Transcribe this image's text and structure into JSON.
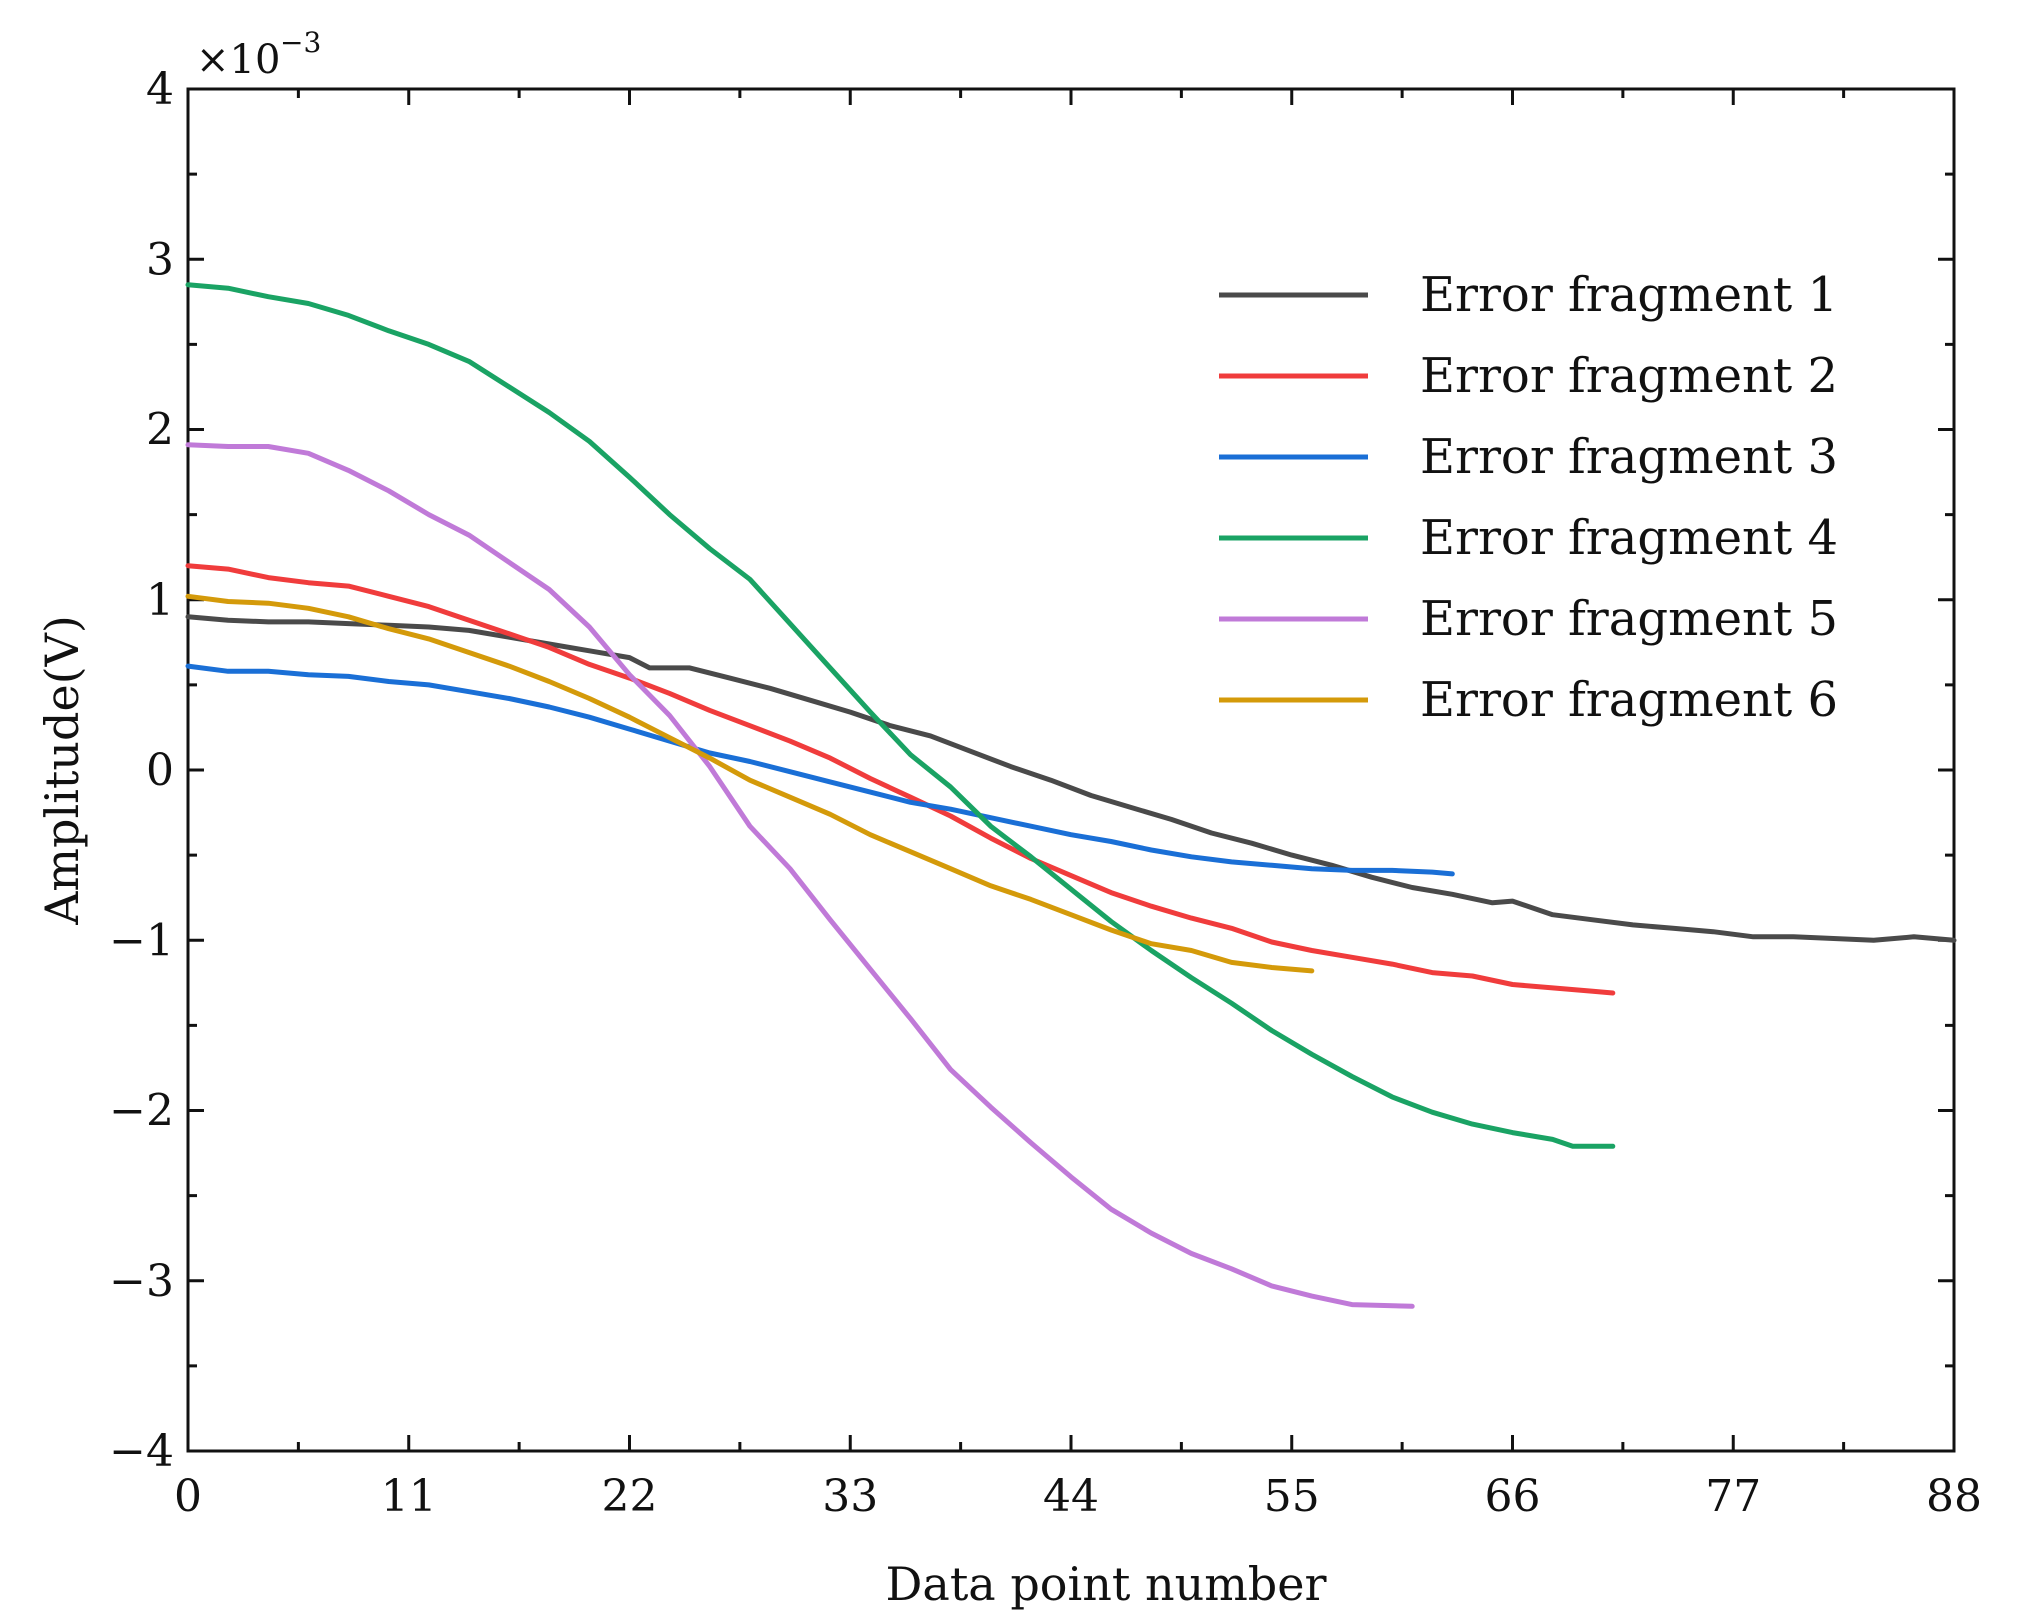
{
  "chart_data": {
    "type": "line",
    "title": "",
    "xlabel": "Data point number",
    "ylabel": "Amplitude(V)",
    "y_scale_prefix": "×10",
    "y_scale_exponent": "−3",
    "xlim": [
      0,
      88
    ],
    "ylim": [
      -4,
      4
    ],
    "x_ticks": [
      0,
      11,
      22,
      33,
      44,
      55,
      66,
      77,
      88
    ],
    "x_tick_labels": [
      "0",
      "11",
      "22",
      "33",
      "44",
      "55",
      "66",
      "77",
      "88"
    ],
    "y_ticks": [
      4,
      3,
      2,
      1,
      0,
      -1,
      -2,
      -3,
      -4
    ],
    "y_tick_labels": [
      "4",
      "3",
      "2",
      "1",
      "0",
      "−1",
      "−2",
      "−3",
      "−4"
    ],
    "legend_position": "top-right",
    "series": [
      {
        "name": "Error fragment 1",
        "color": "#4a4a4a",
        "points": [
          [
            0,
            0.9
          ],
          [
            2,
            0.88
          ],
          [
            4,
            0.87
          ],
          [
            6,
            0.87
          ],
          [
            8,
            0.86
          ],
          [
            10,
            0.85
          ],
          [
            12,
            0.84
          ],
          [
            14,
            0.82
          ],
          [
            16,
            0.78
          ],
          [
            18,
            0.74
          ],
          [
            20,
            0.7
          ],
          [
            22,
            0.66
          ],
          [
            23,
            0.6
          ],
          [
            25,
            0.6
          ],
          [
            27,
            0.54
          ],
          [
            29,
            0.48
          ],
          [
            31,
            0.41
          ],
          [
            33,
            0.34
          ],
          [
            35,
            0.26
          ],
          [
            37,
            0.2
          ],
          [
            39,
            0.11
          ],
          [
            41,
            0.02
          ],
          [
            43,
            -0.06
          ],
          [
            45,
            -0.15
          ],
          [
            47,
            -0.22
          ],
          [
            49,
            -0.29
          ],
          [
            51,
            -0.37
          ],
          [
            53,
            -0.43
          ],
          [
            55,
            -0.5
          ],
          [
            57,
            -0.56
          ],
          [
            59,
            -0.63
          ],
          [
            61,
            -0.69
          ],
          [
            63,
            -0.73
          ],
          [
            65,
            -0.78
          ],
          [
            66,
            -0.77
          ],
          [
            68,
            -0.85
          ],
          [
            70,
            -0.88
          ],
          [
            72,
            -0.91
          ],
          [
            74,
            -0.93
          ],
          [
            76,
            -0.95
          ],
          [
            78,
            -0.98
          ],
          [
            80,
            -0.98
          ],
          [
            82,
            -0.99
          ],
          [
            84,
            -1.0
          ],
          [
            86,
            -0.98
          ],
          [
            88,
            -1.0
          ]
        ]
      },
      {
        "name": "Error fragment 2",
        "color": "#f03c3c",
        "points": [
          [
            0,
            1.2
          ],
          [
            2,
            1.18
          ],
          [
            4,
            1.13
          ],
          [
            6,
            1.1
          ],
          [
            8,
            1.08
          ],
          [
            10,
            1.02
          ],
          [
            12,
            0.96
          ],
          [
            14,
            0.88
          ],
          [
            16,
            0.8
          ],
          [
            18,
            0.72
          ],
          [
            20,
            0.62
          ],
          [
            22,
            0.54
          ],
          [
            24,
            0.45
          ],
          [
            26,
            0.35
          ],
          [
            28,
            0.26
          ],
          [
            30,
            0.17
          ],
          [
            32,
            0.07
          ],
          [
            34,
            -0.05
          ],
          [
            36,
            -0.16
          ],
          [
            38,
            -0.27
          ],
          [
            40,
            -0.4
          ],
          [
            42,
            -0.52
          ],
          [
            44,
            -0.62
          ],
          [
            46,
            -0.72
          ],
          [
            48,
            -0.8
          ],
          [
            50,
            -0.87
          ],
          [
            52,
            -0.93
          ],
          [
            54,
            -1.01
          ],
          [
            56,
            -1.06
          ],
          [
            58,
            -1.1
          ],
          [
            60,
            -1.14
          ],
          [
            62,
            -1.19
          ],
          [
            64,
            -1.21
          ],
          [
            66,
            -1.26
          ],
          [
            68,
            -1.28
          ],
          [
            70,
            -1.3
          ],
          [
            71,
            -1.31
          ]
        ]
      },
      {
        "name": "Error fragment 3",
        "color": "#1a6fd6",
        "points": [
          [
            0,
            0.61
          ],
          [
            2,
            0.58
          ],
          [
            4,
            0.58
          ],
          [
            6,
            0.56
          ],
          [
            8,
            0.55
          ],
          [
            10,
            0.52
          ],
          [
            12,
            0.5
          ],
          [
            14,
            0.46
          ],
          [
            16,
            0.42
          ],
          [
            18,
            0.37
          ],
          [
            20,
            0.31
          ],
          [
            22,
            0.24
          ],
          [
            24,
            0.17
          ],
          [
            26,
            0.1
          ],
          [
            28,
            0.05
          ],
          [
            30,
            -0.01
          ],
          [
            32,
            -0.07
          ],
          [
            34,
            -0.13
          ],
          [
            36,
            -0.19
          ],
          [
            38,
            -0.23
          ],
          [
            40,
            -0.28
          ],
          [
            42,
            -0.33
          ],
          [
            44,
            -0.38
          ],
          [
            46,
            -0.42
          ],
          [
            48,
            -0.47
          ],
          [
            50,
            -0.51
          ],
          [
            52,
            -0.54
          ],
          [
            54,
            -0.56
          ],
          [
            56,
            -0.58
          ],
          [
            58,
            -0.59
          ],
          [
            60,
            -0.59
          ],
          [
            62,
            -0.6
          ],
          [
            63,
            -0.61
          ]
        ]
      },
      {
        "name": "Error fragment 4",
        "color": "#1aa364",
        "points": [
          [
            0,
            2.85
          ],
          [
            2,
            2.83
          ],
          [
            4,
            2.78
          ],
          [
            6,
            2.74
          ],
          [
            8,
            2.67
          ],
          [
            10,
            2.58
          ],
          [
            12,
            2.5
          ],
          [
            14,
            2.4
          ],
          [
            16,
            2.25
          ],
          [
            18,
            2.1
          ],
          [
            20,
            1.93
          ],
          [
            22,
            1.72
          ],
          [
            24,
            1.5
          ],
          [
            26,
            1.3
          ],
          [
            28,
            1.12
          ],
          [
            30,
            0.86
          ],
          [
            32,
            0.6
          ],
          [
            34,
            0.34
          ],
          [
            36,
            0.09
          ],
          [
            38,
            -0.1
          ],
          [
            40,
            -0.33
          ],
          [
            42,
            -0.51
          ],
          [
            44,
            -0.7
          ],
          [
            46,
            -0.89
          ],
          [
            48,
            -1.06
          ],
          [
            50,
            -1.22
          ],
          [
            52,
            -1.37
          ],
          [
            54,
            -1.53
          ],
          [
            56,
            -1.67
          ],
          [
            58,
            -1.8
          ],
          [
            60,
            -1.92
          ],
          [
            62,
            -2.01
          ],
          [
            64,
            -2.08
          ],
          [
            66,
            -2.13
          ],
          [
            68,
            -2.17
          ],
          [
            69,
            -2.21
          ],
          [
            71,
            -2.21
          ]
        ]
      },
      {
        "name": "Error fragment 5",
        "color": "#c07ad8",
        "points": [
          [
            0,
            1.91
          ],
          [
            2,
            1.9
          ],
          [
            4,
            1.9
          ],
          [
            6,
            1.86
          ],
          [
            8,
            1.76
          ],
          [
            10,
            1.64
          ],
          [
            12,
            1.5
          ],
          [
            14,
            1.38
          ],
          [
            16,
            1.22
          ],
          [
            18,
            1.06
          ],
          [
            20,
            0.84
          ],
          [
            22,
            0.56
          ],
          [
            24,
            0.32
          ],
          [
            26,
            0.02
          ],
          [
            28,
            -0.33
          ],
          [
            30,
            -0.58
          ],
          [
            32,
            -0.88
          ],
          [
            34,
            -1.17
          ],
          [
            36,
            -1.46
          ],
          [
            38,
            -1.76
          ],
          [
            40,
            -1.98
          ],
          [
            42,
            -2.19
          ],
          [
            44,
            -2.39
          ],
          [
            46,
            -2.58
          ],
          [
            48,
            -2.72
          ],
          [
            50,
            -2.84
          ],
          [
            52,
            -2.93
          ],
          [
            54,
            -3.03
          ],
          [
            56,
            -3.09
          ],
          [
            58,
            -3.14
          ],
          [
            61,
            -3.15
          ]
        ]
      },
      {
        "name": "Error fragment 6",
        "color": "#d49a0a",
        "points": [
          [
            0,
            1.02
          ],
          [
            2,
            0.99
          ],
          [
            4,
            0.98
          ],
          [
            6,
            0.95
          ],
          [
            8,
            0.9
          ],
          [
            10,
            0.83
          ],
          [
            12,
            0.77
          ],
          [
            14,
            0.69
          ],
          [
            16,
            0.61
          ],
          [
            18,
            0.52
          ],
          [
            20,
            0.42
          ],
          [
            22,
            0.31
          ],
          [
            24,
            0.19
          ],
          [
            26,
            0.07
          ],
          [
            28,
            -0.06
          ],
          [
            30,
            -0.16
          ],
          [
            32,
            -0.26
          ],
          [
            34,
            -0.38
          ],
          [
            36,
            -0.48
          ],
          [
            38,
            -0.58
          ],
          [
            40,
            -0.68
          ],
          [
            42,
            -0.76
          ],
          [
            44,
            -0.85
          ],
          [
            46,
            -0.94
          ],
          [
            48,
            -1.02
          ],
          [
            50,
            -1.06
          ],
          [
            52,
            -1.13
          ],
          [
            54,
            -1.16
          ],
          [
            56,
            -1.18
          ]
        ]
      }
    ]
  }
}
